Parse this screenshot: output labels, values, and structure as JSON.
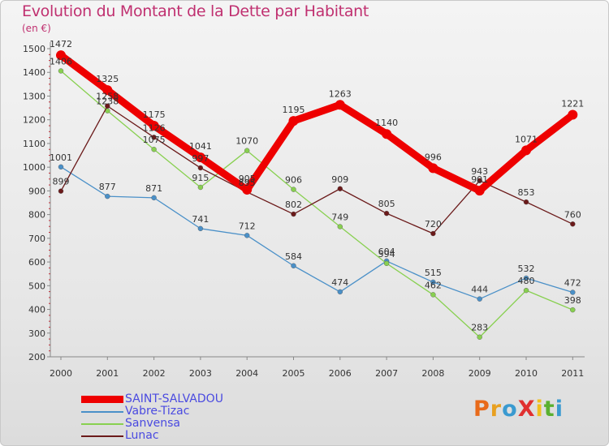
{
  "chart_data": {
    "type": "line",
    "title": "Evolution du Montant de la Dette par Habitant",
    "unit_label": "(en €)",
    "x": [
      "2000",
      "2001",
      "2002",
      "2003",
      "2004",
      "2005",
      "2006",
      "2007",
      "2008",
      "2009",
      "2010",
      "2011"
    ],
    "ylim": [
      200,
      1500
    ],
    "yticks": [
      200,
      300,
      400,
      500,
      600,
      700,
      800,
      900,
      1000,
      1100,
      1200,
      1300,
      1400,
      1500
    ],
    "grid": false,
    "legend_position": "bottom-left",
    "series": [
      {
        "name": "SAINT-SALVADOU",
        "color": "#ee0000",
        "values": [
          1472,
          1325,
          1175,
          1041,
          905,
          1195,
          1263,
          1140,
          996,
          901,
          1071,
          1221
        ]
      },
      {
        "name": "Vabre-Tizac",
        "color": "#4a90c8",
        "values": [
          1001,
          877,
          871,
          741,
          712,
          584,
          474,
          604,
          515,
          444,
          532,
          472
        ]
      },
      {
        "name": "Sanvensa",
        "color": "#88d050",
        "values": [
          1406,
          1238,
          1075,
          915,
          1070,
          906,
          749,
          594,
          462,
          283,
          480,
          398
        ]
      },
      {
        "name": "Lunac",
        "color": "#6b1a1a",
        "values": [
          899,
          1258,
          1126,
          997,
          895,
          802,
          909,
          805,
          720,
          943,
          853,
          760
        ]
      }
    ]
  },
  "logo": {
    "text": "ProXiti",
    "colors": [
      "#e86a1a",
      "#e8a020",
      "#3a9ad0",
      "#e03030",
      "#f0c020",
      "#5ab030",
      "#3a9ad0"
    ]
  }
}
